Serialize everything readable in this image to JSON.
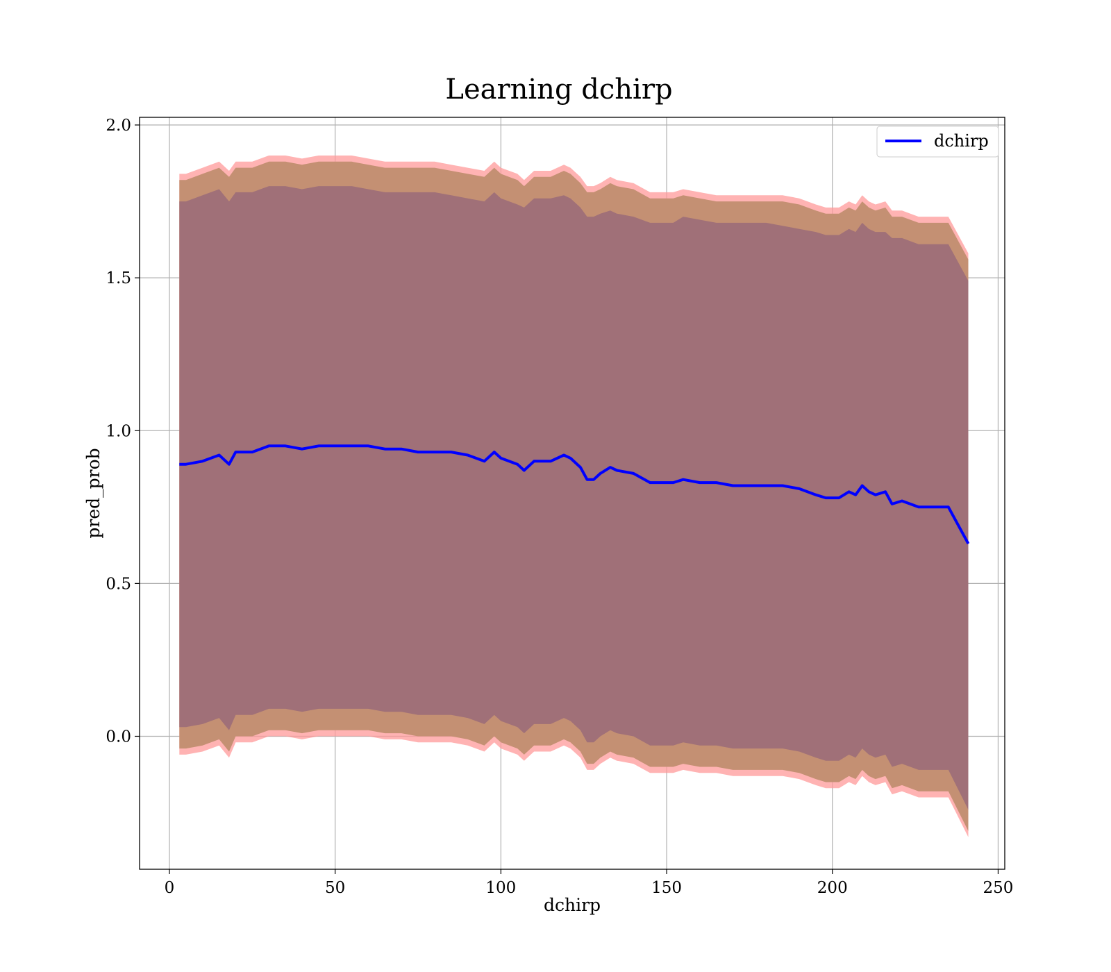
{
  "chart_data": {
    "type": "line",
    "title": "Learning dchirp",
    "xlabel": "dchirp",
    "ylabel": "pred_prob",
    "xlim": [
      -9,
      252
    ],
    "ylim": [
      -0.435,
      2.025
    ],
    "xticks": [
      0,
      50,
      100,
      150,
      200,
      250
    ],
    "yticks": [
      0.0,
      0.5,
      1.0,
      1.5,
      2.0
    ],
    "xtick_labels": [
      "0",
      "50",
      "100",
      "150",
      "200",
      "250"
    ],
    "ytick_labels": [
      "0.0",
      "0.5",
      "1.0",
      "1.5",
      "2.0"
    ],
    "grid": true,
    "legend": {
      "position": "top-right",
      "entries": [
        "dchirp"
      ]
    },
    "colors": {
      "line": "#0000ff",
      "outer_band": "#ff9999",
      "middle_band": "#c49073",
      "inner_band": "#a07078",
      "grid": "#b0b0b0"
    },
    "x": [
      3,
      5,
      10,
      15,
      18,
      20,
      25,
      30,
      35,
      40,
      45,
      50,
      55,
      60,
      65,
      70,
      75,
      80,
      85,
      90,
      95,
      98,
      100,
      105,
      107,
      110,
      115,
      119,
      121,
      124,
      126,
      128,
      130,
      133,
      135,
      140,
      145,
      150,
      152,
      155,
      160,
      165,
      170,
      175,
      180,
      185,
      190,
      195,
      198,
      200,
      202,
      205,
      207,
      209,
      211,
      213,
      216,
      218,
      221,
      226,
      230,
      235,
      241
    ],
    "series": [
      {
        "name": "dchirp",
        "values": [
          0.89,
          0.89,
          0.9,
          0.92,
          0.89,
          0.93,
          0.93,
          0.95,
          0.95,
          0.94,
          0.95,
          0.95,
          0.95,
          0.95,
          0.94,
          0.94,
          0.93,
          0.93,
          0.93,
          0.92,
          0.9,
          0.93,
          0.91,
          0.89,
          0.87,
          0.9,
          0.9,
          0.92,
          0.91,
          0.88,
          0.84,
          0.84,
          0.86,
          0.88,
          0.87,
          0.86,
          0.83,
          0.83,
          0.83,
          0.84,
          0.83,
          0.83,
          0.82,
          0.82,
          0.82,
          0.82,
          0.81,
          0.79,
          0.78,
          0.78,
          0.78,
          0.8,
          0.79,
          0.82,
          0.8,
          0.79,
          0.8,
          0.76,
          0.77,
          0.75,
          0.75,
          0.75,
          0.63
        ]
      },
      {
        "name": "",
        "role": "outer_band",
        "upper": [
          1.84,
          1.84,
          1.86,
          1.88,
          1.85,
          1.88,
          1.88,
          1.9,
          1.9,
          1.89,
          1.9,
          1.9,
          1.9,
          1.89,
          1.88,
          1.88,
          1.88,
          1.88,
          1.87,
          1.86,
          1.85,
          1.88,
          1.86,
          1.84,
          1.82,
          1.85,
          1.85,
          1.87,
          1.86,
          1.83,
          1.8,
          1.8,
          1.81,
          1.83,
          1.82,
          1.81,
          1.78,
          1.78,
          1.78,
          1.79,
          1.78,
          1.77,
          1.77,
          1.77,
          1.77,
          1.77,
          1.76,
          1.74,
          1.73,
          1.73,
          1.73,
          1.75,
          1.74,
          1.77,
          1.75,
          1.74,
          1.75,
          1.72,
          1.72,
          1.7,
          1.7,
          1.7,
          1.58
        ],
        "lower": [
          -0.06,
          -0.06,
          -0.05,
          -0.03,
          -0.07,
          -0.02,
          -0.02,
          0.0,
          0.0,
          -0.01,
          0.0,
          0.0,
          0.0,
          0.0,
          -0.01,
          -0.01,
          -0.02,
          -0.02,
          -0.02,
          -0.03,
          -0.05,
          -0.02,
          -0.04,
          -0.06,
          -0.08,
          -0.05,
          -0.05,
          -0.03,
          -0.04,
          -0.07,
          -0.11,
          -0.11,
          -0.09,
          -0.07,
          -0.08,
          -0.09,
          -0.12,
          -0.12,
          -0.12,
          -0.11,
          -0.12,
          -0.12,
          -0.13,
          -0.13,
          -0.13,
          -0.13,
          -0.14,
          -0.16,
          -0.17,
          -0.17,
          -0.17,
          -0.15,
          -0.16,
          -0.13,
          -0.15,
          -0.16,
          -0.15,
          -0.19,
          -0.18,
          -0.2,
          -0.2,
          -0.2,
          -0.33
        ]
      },
      {
        "name": "",
        "role": "middle_band",
        "upper": [
          1.82,
          1.82,
          1.84,
          1.86,
          1.83,
          1.86,
          1.86,
          1.88,
          1.88,
          1.87,
          1.88,
          1.88,
          1.88,
          1.87,
          1.86,
          1.86,
          1.86,
          1.86,
          1.85,
          1.84,
          1.83,
          1.86,
          1.84,
          1.82,
          1.8,
          1.83,
          1.83,
          1.85,
          1.84,
          1.81,
          1.78,
          1.78,
          1.79,
          1.81,
          1.8,
          1.79,
          1.76,
          1.76,
          1.76,
          1.77,
          1.76,
          1.75,
          1.75,
          1.75,
          1.75,
          1.75,
          1.74,
          1.72,
          1.71,
          1.71,
          1.71,
          1.73,
          1.72,
          1.75,
          1.73,
          1.72,
          1.73,
          1.7,
          1.7,
          1.68,
          1.68,
          1.68,
          1.56
        ],
        "lower": [
          -0.04,
          -0.04,
          -0.03,
          -0.01,
          -0.05,
          0.0,
          0.0,
          0.02,
          0.02,
          0.01,
          0.02,
          0.02,
          0.02,
          0.02,
          0.01,
          0.01,
          0.0,
          0.0,
          0.0,
          -0.01,
          -0.03,
          0.0,
          -0.02,
          -0.04,
          -0.06,
          -0.03,
          -0.03,
          -0.01,
          -0.02,
          -0.05,
          -0.09,
          -0.09,
          -0.07,
          -0.05,
          -0.06,
          -0.07,
          -0.1,
          -0.1,
          -0.1,
          -0.09,
          -0.1,
          -0.1,
          -0.11,
          -0.11,
          -0.11,
          -0.11,
          -0.12,
          -0.14,
          -0.15,
          -0.15,
          -0.15,
          -0.13,
          -0.14,
          -0.11,
          -0.13,
          -0.14,
          -0.13,
          -0.17,
          -0.16,
          -0.18,
          -0.18,
          -0.18,
          -0.31
        ]
      },
      {
        "name": "",
        "role": "inner_band",
        "upper": [
          1.75,
          1.75,
          1.77,
          1.79,
          1.75,
          1.78,
          1.78,
          1.8,
          1.8,
          1.79,
          1.8,
          1.8,
          1.8,
          1.79,
          1.78,
          1.78,
          1.78,
          1.78,
          1.77,
          1.76,
          1.75,
          1.78,
          1.76,
          1.74,
          1.73,
          1.76,
          1.76,
          1.77,
          1.76,
          1.73,
          1.7,
          1.7,
          1.71,
          1.72,
          1.71,
          1.7,
          1.68,
          1.68,
          1.68,
          1.7,
          1.69,
          1.68,
          1.68,
          1.68,
          1.68,
          1.67,
          1.66,
          1.65,
          1.64,
          1.64,
          1.64,
          1.66,
          1.65,
          1.68,
          1.66,
          1.65,
          1.65,
          1.63,
          1.63,
          1.61,
          1.61,
          1.61,
          1.49
        ],
        "lower": [
          0.03,
          0.03,
          0.04,
          0.06,
          0.02,
          0.07,
          0.07,
          0.09,
          0.09,
          0.08,
          0.09,
          0.09,
          0.09,
          0.09,
          0.08,
          0.08,
          0.07,
          0.07,
          0.07,
          0.06,
          0.04,
          0.07,
          0.05,
          0.03,
          0.01,
          0.04,
          0.04,
          0.06,
          0.05,
          0.02,
          -0.02,
          -0.02,
          0.0,
          0.02,
          0.01,
          0.0,
          -0.03,
          -0.03,
          -0.03,
          -0.02,
          -0.03,
          -0.03,
          -0.04,
          -0.04,
          -0.04,
          -0.04,
          -0.05,
          -0.07,
          -0.08,
          -0.08,
          -0.08,
          -0.06,
          -0.07,
          -0.04,
          -0.06,
          -0.07,
          -0.06,
          -0.1,
          -0.09,
          -0.11,
          -0.11,
          -0.11,
          -0.24
        ]
      }
    ]
  }
}
